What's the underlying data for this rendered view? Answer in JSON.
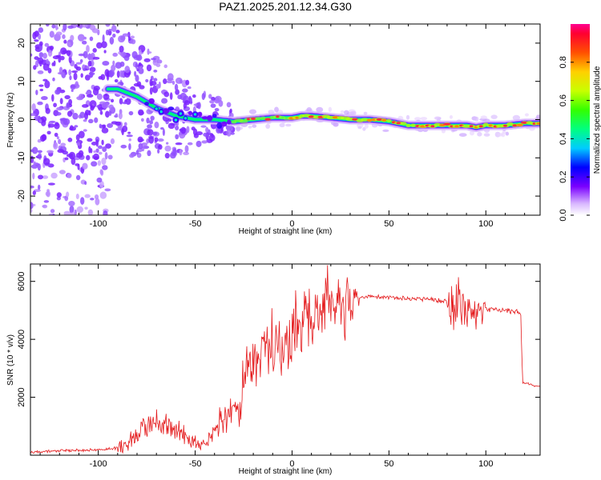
{
  "title": "PAZ1.2025.201.12.34.G30",
  "chart_data": [
    {
      "type": "heatmap",
      "xlabel": "Height of straight line (km)",
      "ylabel": "Frequency (Hz)",
      "xlim": [
        -135,
        128
      ],
      "ylim": [
        -25,
        25
      ],
      "xticks": [
        -100,
        -50,
        0,
        50,
        100
      ],
      "yticks": [
        -20,
        -10,
        0,
        10,
        20
      ],
      "colorbar": {
        "label": "Normalized spectral amplitude",
        "range": [
          0,
          1
        ],
        "ticks": [
          "0.0",
          "0.2",
          "0.4",
          "0.6",
          "0.8"
        ]
      },
      "ridge": {
        "x": [
          -90,
          -80,
          -70,
          -60,
          -50,
          -40,
          -30,
          -20,
          -10,
          0,
          5,
          10,
          20,
          30,
          40,
          50,
          60,
          70,
          80,
          90,
          95,
          100,
          110,
          120,
          128
        ],
        "y": [
          8,
          6,
          3,
          1,
          0,
          0,
          -0.5,
          0,
          0.5,
          0.5,
          1,
          1,
          0.5,
          0,
          0,
          -0.5,
          -1.5,
          -1.5,
          -1.5,
          -1.5,
          -2,
          -1.5,
          -1.5,
          -1,
          -1
        ]
      }
    },
    {
      "type": "line",
      "xlabel": "Height of straight line (km)",
      "ylabel": "SNR (10 * v/v)",
      "xlim": [
        -135,
        128
      ],
      "ylim": [
        0,
        6600
      ],
      "xticks": [
        -100,
        -50,
        0,
        50,
        100
      ],
      "yticks": [
        2000,
        4000,
        6000
      ],
      "color": "#e41a1c",
      "series": [
        {
          "x": [
            -135,
            -120,
            -100,
            -90,
            -85,
            -80,
            -75,
            -70,
            -65,
            -60,
            -55,
            -50,
            -45,
            -40,
            -35,
            -30,
            -27,
            -25,
            -20,
            -15,
            -10,
            -5,
            0,
            5,
            8,
            10,
            15,
            20,
            25,
            30,
            35,
            40,
            50,
            60,
            70,
            80,
            85,
            90,
            95,
            100,
            110,
            118,
            119,
            125,
            128
          ],
          "values": [
            100,
            150,
            180,
            250,
            400,
            700,
            1000,
            1100,
            1000,
            800,
            600,
            400,
            400,
            800,
            1200,
            1600,
            1600,
            2800,
            3000,
            3300,
            3500,
            3800,
            3900,
            4300,
            4600,
            4500,
            4900,
            5100,
            5200,
            5300,
            5450,
            5500,
            5450,
            5400,
            5400,
            5300,
            5200,
            5100,
            5100,
            5050,
            5000,
            4900,
            2500,
            2400,
            2400
          ]
        }
      ]
    }
  ]
}
